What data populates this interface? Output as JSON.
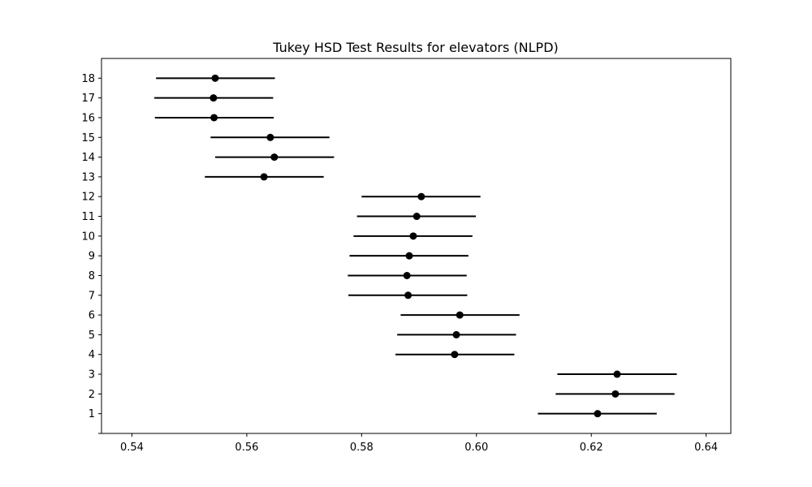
{
  "chart_data": {
    "type": "scatter",
    "title": "Tukey HSD Test Results for elevators (NLPD)",
    "xlabel": "",
    "ylabel": "",
    "xlim": [
      0.5347,
      0.6443
    ],
    "ylim": [
      0,
      19
    ],
    "xticks": [
      "0.54",
      "0.56",
      "0.58",
      "0.60",
      "0.62",
      "0.64"
    ],
    "xtick_values": [
      0.54,
      0.56,
      0.58,
      0.6,
      0.62,
      0.64
    ],
    "yticks": [
      "1",
      "2",
      "3",
      "4",
      "5",
      "6",
      "7",
      "8",
      "9",
      "10",
      "11",
      "12",
      "13",
      "14",
      "15",
      "16",
      "17",
      "18"
    ],
    "grid": false,
    "legend": "none",
    "color": "#000000",
    "points": [
      {
        "group": "1",
        "mean": 0.6211,
        "low": 0.6107,
        "high": 0.6314
      },
      {
        "group": "2",
        "mean": 0.6242,
        "low": 0.6138,
        "high": 0.6345
      },
      {
        "group": "3",
        "mean": 0.6245,
        "low": 0.6141,
        "high": 0.6349
      },
      {
        "group": "4",
        "mean": 0.5962,
        "low": 0.5859,
        "high": 0.6066
      },
      {
        "group": "5",
        "mean": 0.5965,
        "low": 0.5862,
        "high": 0.6069
      },
      {
        "group": "6",
        "mean": 0.5971,
        "low": 0.5868,
        "high": 0.6075
      },
      {
        "group": "7",
        "mean": 0.5881,
        "low": 0.5777,
        "high": 0.5984
      },
      {
        "group": "8",
        "mean": 0.5879,
        "low": 0.5776,
        "high": 0.5983
      },
      {
        "group": "9",
        "mean": 0.5883,
        "low": 0.5779,
        "high": 0.5986
      },
      {
        "group": "10",
        "mean": 0.589,
        "low": 0.5786,
        "high": 0.5993
      },
      {
        "group": "11",
        "mean": 0.5896,
        "low": 0.5792,
        "high": 0.5999
      },
      {
        "group": "12",
        "mean": 0.5904,
        "low": 0.58,
        "high": 0.6007
      },
      {
        "group": "13",
        "mean": 0.563,
        "low": 0.5527,
        "high": 0.5734
      },
      {
        "group": "14",
        "mean": 0.5648,
        "low": 0.5545,
        "high": 0.5752
      },
      {
        "group": "15",
        "mean": 0.5641,
        "low": 0.5537,
        "high": 0.5744
      },
      {
        "group": "16",
        "mean": 0.5543,
        "low": 0.544,
        "high": 0.5647
      },
      {
        "group": "17",
        "mean": 0.5542,
        "low": 0.5439,
        "high": 0.5646
      },
      {
        "group": "18",
        "mean": 0.5545,
        "low": 0.5442,
        "high": 0.5649
      }
    ]
  }
}
